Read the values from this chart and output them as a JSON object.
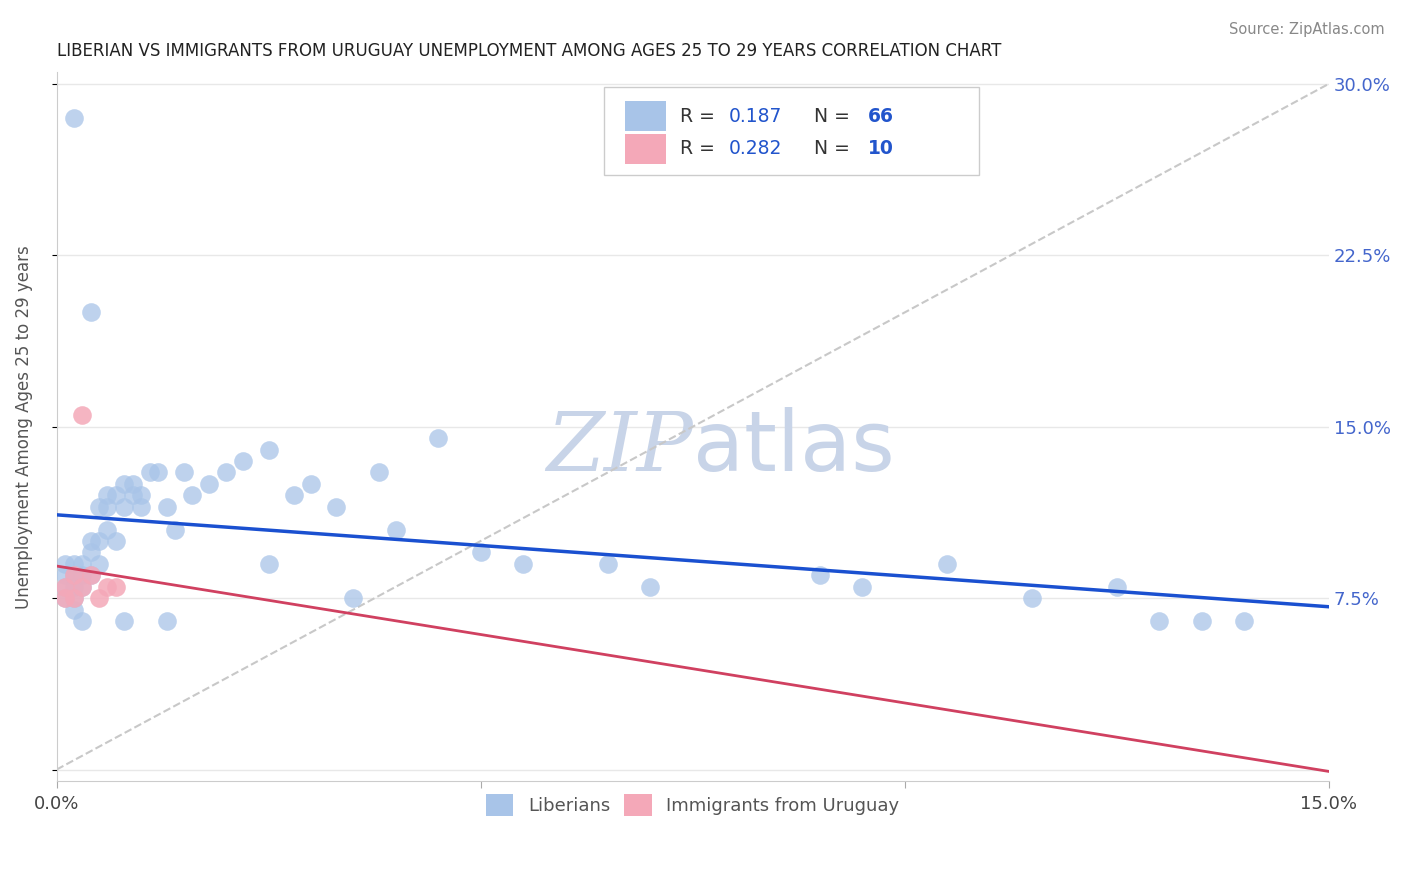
{
  "title": "LIBERIAN VS IMMIGRANTS FROM URUGUAY UNEMPLOYMENT AMONG AGES 25 TO 29 YEARS CORRELATION CHART",
  "source": "Source: ZipAtlas.com",
  "ylabel": "Unemployment Among Ages 25 to 29 years",
  "xmin": 0.0,
  "xmax": 0.15,
  "ymin": 0.0,
  "ymax": 0.3,
  "liberian_R": "0.187",
  "liberian_N": "66",
  "uruguay_R": "0.282",
  "uruguay_N": "10",
  "blue_color": "#a8c4e8",
  "pink_color": "#f4a8b8",
  "blue_line_color": "#1a50d0",
  "pink_line_color": "#d04060",
  "dashed_line_color": "#c8c8c8",
  "watermark_color": "#c8d4e8",
  "background_color": "#ffffff",
  "grid_color": "#e8e8e8",
  "liberian_x": [
    0.001,
    0.001,
    0.001,
    0.001,
    0.001,
    0.002,
    0.002,
    0.002,
    0.002,
    0.002,
    0.002,
    0.003,
    0.003,
    0.003,
    0.003,
    0.003,
    0.004,
    0.004,
    0.004,
    0.005,
    0.005,
    0.005,
    0.005,
    0.006,
    0.006,
    0.006,
    0.007,
    0.007,
    0.007,
    0.008,
    0.008,
    0.009,
    0.009,
    0.01,
    0.01,
    0.011,
    0.012,
    0.013,
    0.014,
    0.015,
    0.016,
    0.017,
    0.019,
    0.02,
    0.022,
    0.025,
    0.028,
    0.03,
    0.033,
    0.037,
    0.04,
    0.05,
    0.055,
    0.065,
    0.07,
    0.075,
    0.09,
    0.095,
    0.105,
    0.115,
    0.125,
    0.13,
    0.135,
    0.14,
    0.003,
    0.002
  ],
  "liberian_y": [
    0.075,
    0.08,
    0.085,
    0.09,
    0.07,
    0.075,
    0.08,
    0.08,
    0.085,
    0.09,
    0.07,
    0.075,
    0.08,
    0.085,
    0.065,
    0.09,
    0.085,
    0.09,
    0.1,
    0.085,
    0.11,
    0.115,
    0.1,
    0.115,
    0.12,
    0.105,
    0.115,
    0.12,
    0.1,
    0.115,
    0.12,
    0.115,
    0.125,
    0.12,
    0.115,
    0.125,
    0.135,
    0.11,
    0.105,
    0.13,
    0.12,
    0.125,
    0.115,
    0.13,
    0.135,
    0.13,
    0.12,
    0.125,
    0.14,
    0.115,
    0.1,
    0.09,
    0.085,
    0.09,
    0.08,
    0.085,
    0.08,
    0.075,
    0.09,
    0.075,
    0.085,
    0.065,
    0.065,
    0.065,
    0.285,
    0.2
  ],
  "uruguay_x": [
    0.001,
    0.001,
    0.002,
    0.002,
    0.003,
    0.003,
    0.004,
    0.005,
    0.006,
    0.007
  ],
  "uruguay_y": [
    0.075,
    0.08,
    0.075,
    0.085,
    0.08,
    0.155,
    0.085,
    0.075,
    0.08,
    0.085
  ]
}
